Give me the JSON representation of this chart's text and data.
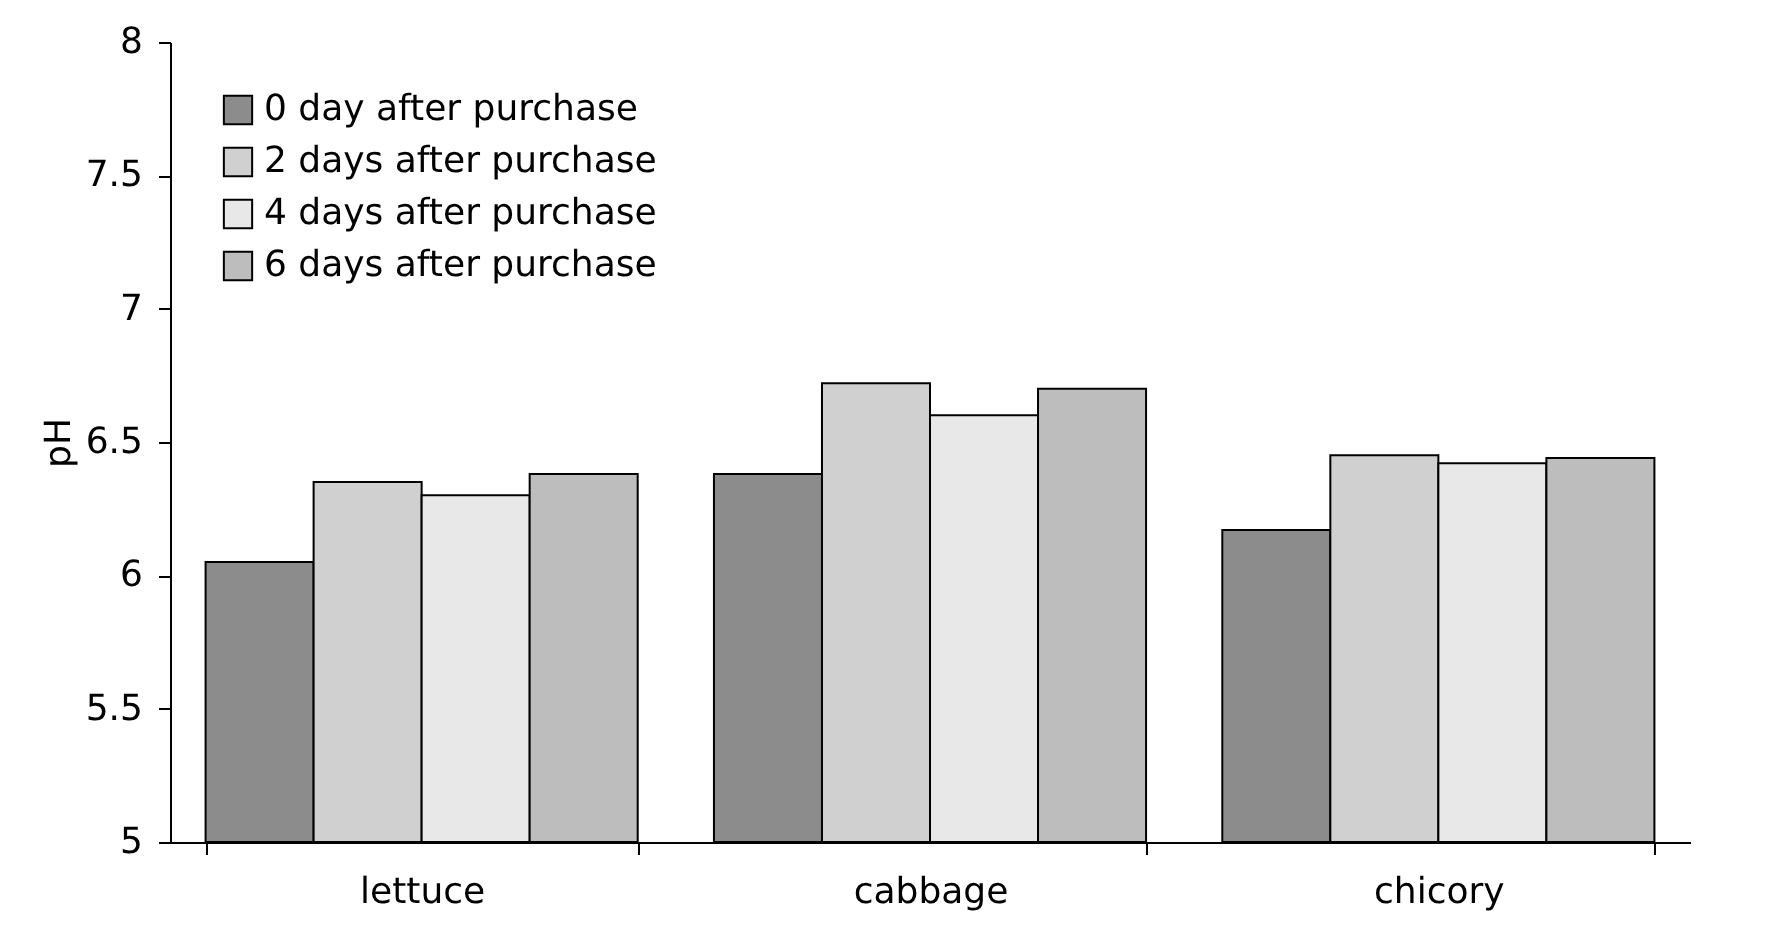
{
  "chart_data": {
    "type": "bar",
    "ylabel": "pH",
    "categories": [
      "lettuce",
      "cabbage",
      "chicory"
    ],
    "series": [
      {
        "name": "0 day after purchase",
        "color": "#8c8c8c",
        "values": [
          6.05,
          6.38,
          6.17
        ]
      },
      {
        "name": "2 days after purchase",
        "color": "#d0d0d0",
        "values": [
          6.35,
          6.72,
          6.45
        ]
      },
      {
        "name": "4 days after purchase",
        "color": "#e8e8e8",
        "values": [
          6.3,
          6.6,
          6.42
        ]
      },
      {
        "name": "6 days after purchase",
        "color": "#bdbdbd",
        "values": [
          6.38,
          6.7,
          6.44
        ]
      }
    ],
    "ylim": [
      5,
      8
    ],
    "yticks": [
      5,
      5.5,
      6,
      6.5,
      7,
      7.5,
      8
    ],
    "grid": false,
    "legend": "top left"
  }
}
